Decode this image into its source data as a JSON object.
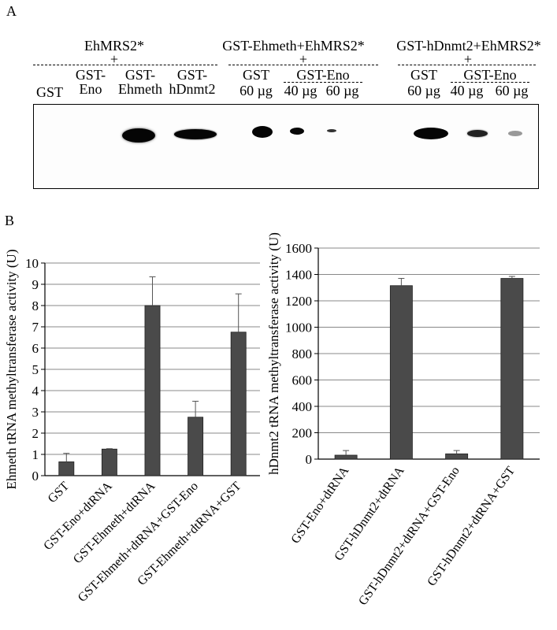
{
  "panel_a": {
    "letter": "A",
    "groups": [
      {
        "title": "EhMRS2*",
        "plus": "+"
      },
      {
        "title": "GST-Ehmeth+EhMRS2*",
        "plus": "+"
      },
      {
        "title": "GST-hDnmt2+EhMRS2*",
        "plus": "+"
      }
    ],
    "lanes": [
      {
        "line1": "",
        "line2": "GST"
      },
      {
        "line1": "GST-",
        "line2": "Eno"
      },
      {
        "line1": "GST-",
        "line2": "Ehmeth"
      },
      {
        "line1": "GST-",
        "line2": "hDnmt2"
      },
      {
        "line1": "GST",
        "line2": "60 µg"
      },
      {
        "line1": "",
        "line2": "40 µg"
      },
      {
        "line1": "",
        "line2": "60 µg"
      },
      {
        "line1": "GST",
        "line2": "60 µg"
      },
      {
        "line1": "",
        "line2": "40 µg"
      },
      {
        "line1": "",
        "line2": "60 µg"
      }
    ],
    "sub_labels": [
      "GST-Eno",
      "GST-Eno"
    ]
  },
  "panel_b": {
    "letter": "B"
  },
  "chart_data": [
    {
      "type": "bar",
      "ylabel": "Ehmeth tRNA methyltransferase activity (U)",
      "ylim": [
        0,
        10
      ],
      "yticks": [
        0,
        1,
        2,
        3,
        4,
        5,
        6,
        7,
        8,
        9,
        10
      ],
      "grid": true,
      "categories": [
        "GST",
        "GST-Eno+dtRNA",
        "GST-Ehmeth+dtRNA",
        "GST-Ehmeth+dtRNA+GST-Eno",
        "GST-Ehmeth+dtRNA+GST"
      ],
      "values": [
        0.65,
        1.25,
        8.0,
        2.75,
        6.75
      ],
      "errors": [
        0.4,
        0.02,
        1.35,
        0.75,
        1.8
      ],
      "bar_color": "#4a4a4a"
    },
    {
      "type": "bar",
      "ylabel": "hDnmt2 tRNA methyltransferase activity (U)",
      "ylim": [
        0,
        1600
      ],
      "yticks": [
        0,
        200,
        400,
        600,
        800,
        1000,
        1200,
        1400,
        1600
      ],
      "grid": true,
      "categories": [
        "GST-Eno+dtRNA",
        "GST-hDnmt2+dtRNA",
        "GST-hDnmt2+dtRNA+GST-Eno",
        "GST-hDnmt2+dtRNA+GST"
      ],
      "values": [
        30,
        1315,
        40,
        1370
      ],
      "errors": [
        35,
        55,
        25,
        15
      ],
      "bar_color": "#4a4a4a"
    }
  ]
}
